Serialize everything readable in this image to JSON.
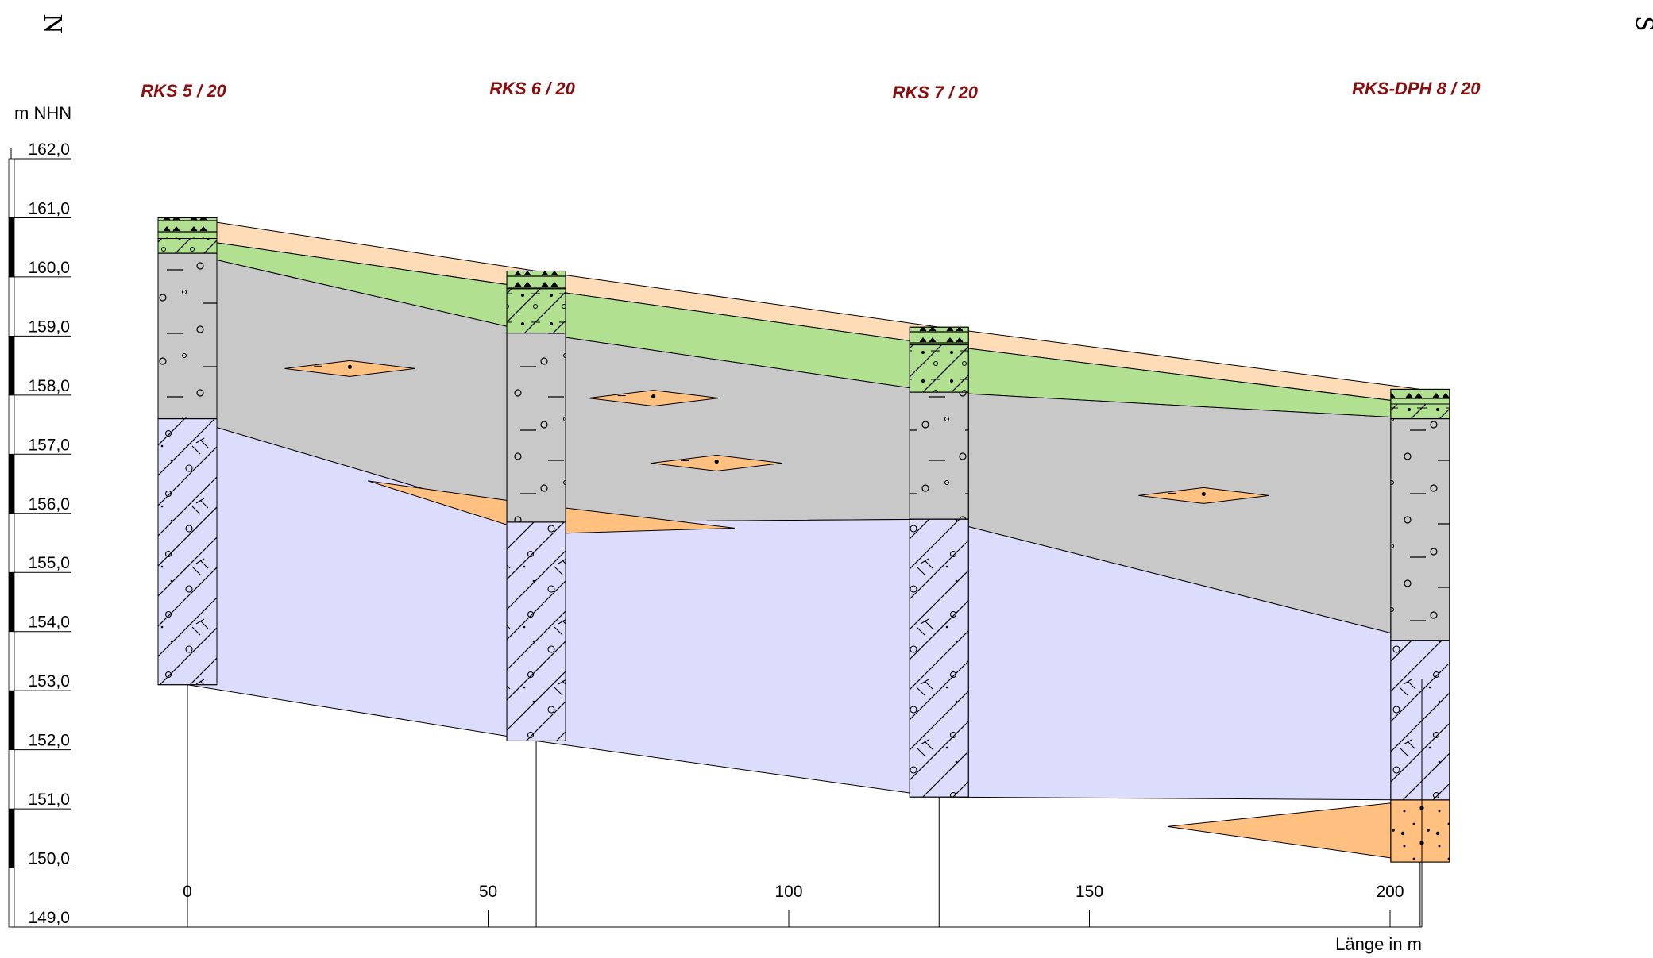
{
  "orientation": {
    "left": "N",
    "right": "S"
  },
  "boreholes": [
    {
      "name": "RKS 5 / 20",
      "x": 0,
      "top": 161.0,
      "bottom": 153.1
    },
    {
      "name": "RKS 6 / 20",
      "x": 58,
      "top": 160.1,
      "bottom": 152.15
    },
    {
      "name": "RKS 7 / 20",
      "x": 125,
      "top": 159.15,
      "bottom": 151.2
    },
    {
      "name": "RKS-DPH 8 / 20",
      "x": 205,
      "top": 158.1,
      "bottom": 150.1
    }
  ],
  "chart_data": {
    "type": "geological cross-section",
    "ylabel": "m NHN",
    "xlabel": "Länge in m",
    "y_ticks": [
      "162,0",
      "161,0",
      "160,0",
      "159,0",
      "158,0",
      "157,0",
      "156,0",
      "155,0",
      "154,0",
      "153,0",
      "152,0",
      "151,0",
      "150,0",
      "149,0"
    ],
    "x_ticks": [
      "0",
      "50",
      "100",
      "150",
      "200"
    ],
    "ylim": [
      149.0,
      162.0
    ],
    "xlim": [
      0,
      205
    ],
    "layers": [
      {
        "key": "topsoil",
        "color": "#ffdcb8",
        "top": [
          161.0,
          160.1,
          159.15,
          158.1
        ],
        "bottom": [
          160.65,
          159.8,
          158.85,
          157.85
        ]
      },
      {
        "key": "green",
        "color": "#b0e090",
        "top": [
          160.65,
          159.8,
          158.85,
          157.85
        ],
        "bottom": [
          160.4,
          159.05,
          158.05,
          157.6
        ]
      },
      {
        "key": "grey",
        "color": "#c8c8c8",
        "top": [
          160.4,
          159.05,
          158.05,
          157.6
        ],
        "bottom": [
          157.6,
          155.85,
          155.9,
          153.85
        ]
      },
      {
        "key": "lavender",
        "color": "#dcdcfc",
        "top": [
          157.6,
          155.85,
          155.9,
          153.85
        ],
        "bottom": [
          153.1,
          152.15,
          151.2,
          151.15
        ]
      },
      {
        "key": "sand-base",
        "color": "#ffc080",
        "top": [
          151.15
        ],
        "bottom": [
          150.1
        ]
      }
    ],
    "lenses": [
      {
        "x_center": 27,
        "elev": 158.45
      },
      {
        "x_center": 77.5,
        "elev": 157.95
      },
      {
        "x_center": 88,
        "elev": 156.85
      },
      {
        "x_center": 169,
        "elev": 156.3
      }
    ]
  }
}
